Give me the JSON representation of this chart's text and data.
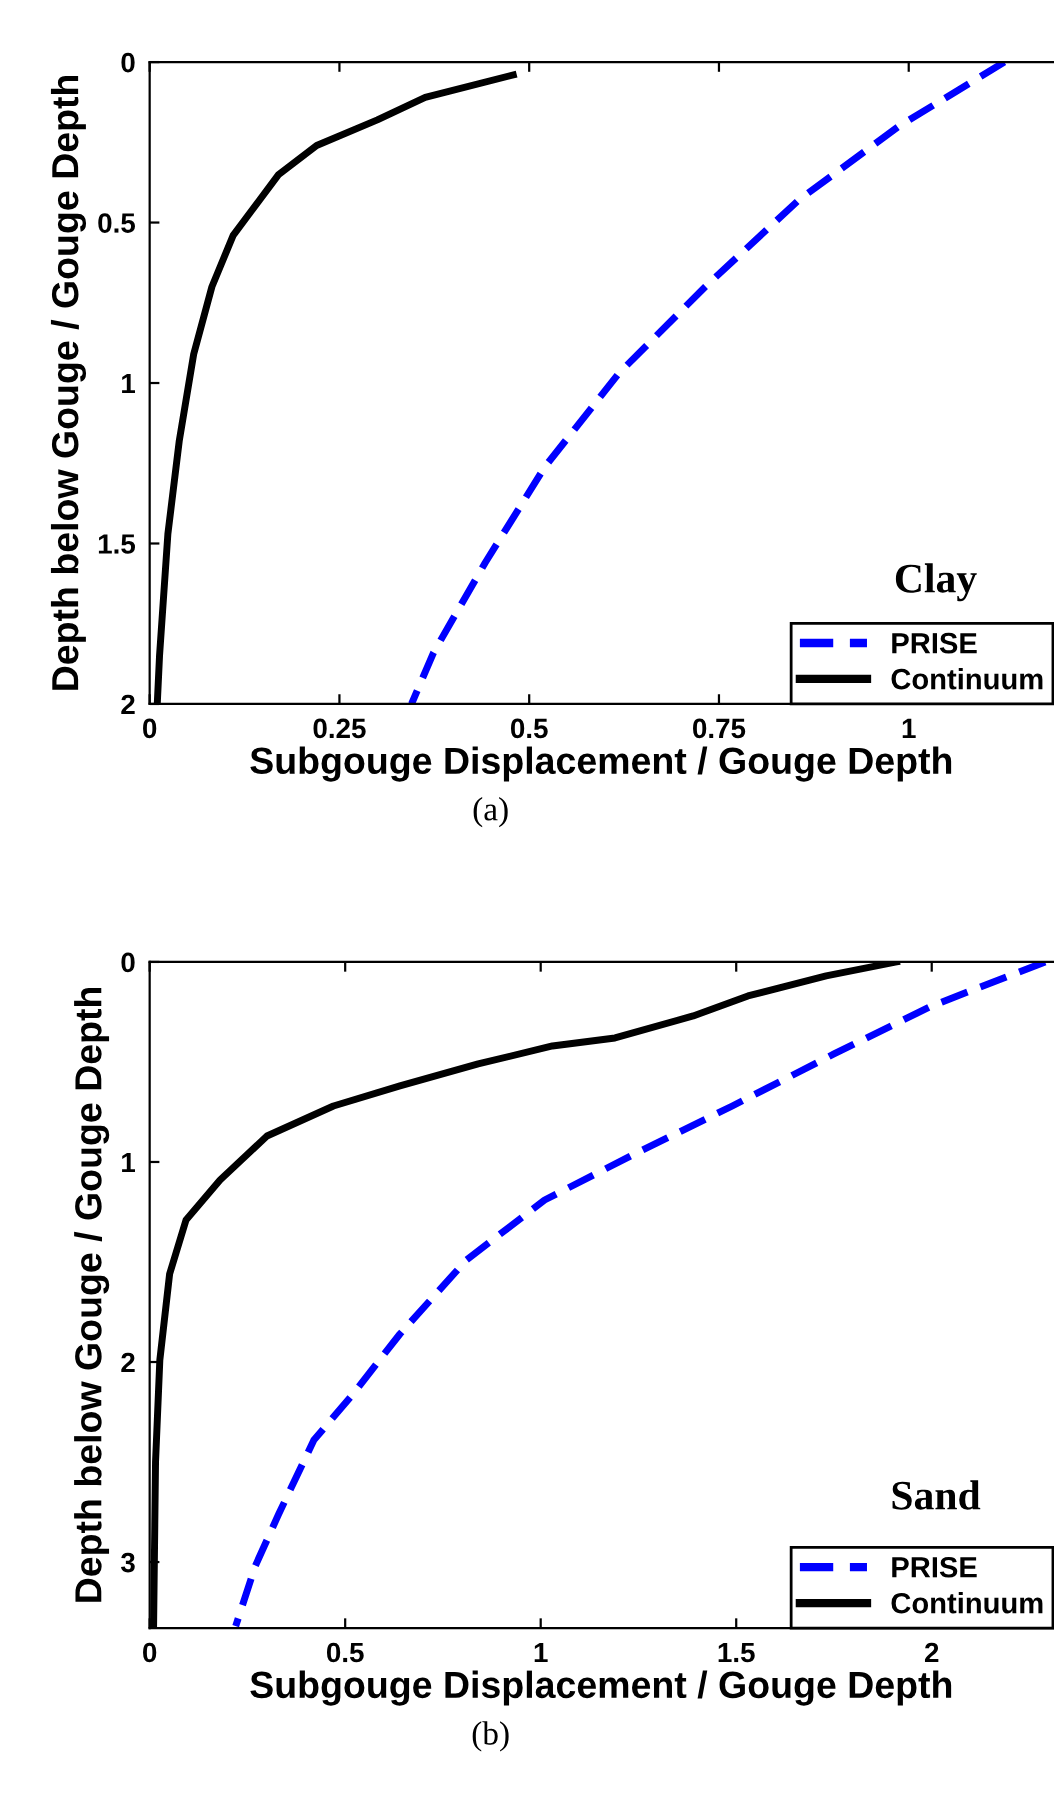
{
  "chart_data": [
    {
      "type": "line",
      "xlabel": "Subgouge Displacement / Gouge Depth",
      "ylabel": "Depth below Gouge / Gouge Depth",
      "xlim": [
        0,
        1.19
      ],
      "xticks": [
        0,
        0.25,
        0.5,
        0.75,
        1
      ],
      "ylim": [
        2,
        0
      ],
      "yticks": [
        0,
        0.5,
        1,
        1.5,
        2
      ],
      "legend": "bottom right",
      "grid": false,
      "annotations": [
        "Clay",
        "(a)"
      ],
      "series": [
        {
          "name": "PRISE",
          "color": "#0000ff",
          "line_style": "dashed",
          "x": [
            1.126,
            0.987,
            0.855,
            0.732,
            0.618,
            0.521,
            0.442,
            0.374,
            0.345
          ],
          "values": [
            0,
            0.2,
            0.43,
            0.7,
            0.97,
            1.26,
            1.56,
            1.84,
            2
          ]
        },
        {
          "name": "Continuum",
          "color": "#000000",
          "line_style": "solid",
          "x": [
            0.479,
            0.363,
            0.3,
            0.22,
            0.17,
            0.11,
            0.082,
            0.058,
            0.039,
            0.024,
            0.013,
            0.01
          ],
          "values": [
            0.04,
            0.11,
            0.18,
            0.26,
            0.35,
            0.54,
            0.7,
            0.91,
            1.18,
            1.47,
            1.85,
            2
          ]
        }
      ]
    },
    {
      "type": "line",
      "xlabel": "Subgouge Displacement / Gouge Depth",
      "ylabel": "Depth below Gouge / Gouge Depth",
      "xlim": [
        0,
        2.31
      ],
      "xticks": [
        0,
        0.5,
        1,
        1.5,
        2
      ],
      "ylim": [
        3.33,
        0
      ],
      "yticks": [
        0,
        1,
        2,
        3
      ],
      "legend": "bottom right",
      "grid": false,
      "annotations": [
        "Sand",
        "(b)"
      ],
      "series": [
        {
          "name": "PRISE",
          "color": "#0000ff",
          "line_style": "dashed",
          "x": [
            2.29,
            2.0,
            1.75,
            1.49,
            1.24,
            1.01,
            0.81,
            0.64,
            0.52,
            0.42,
            0.33,
            0.27,
            0.22
          ],
          "values": [
            0,
            0.22,
            0.46,
            0.72,
            0.96,
            1.19,
            1.49,
            1.86,
            2.16,
            2.39,
            2.76,
            3.02,
            3.32
          ]
        },
        {
          "name": "Continuum",
          "color": "#000000",
          "line_style": "solid",
          "x": [
            1.91,
            1.73,
            1.53,
            1.39,
            1.19,
            1.03,
            0.84,
            0.64,
            0.47,
            0.3,
            0.18,
            0.093,
            0.051,
            0.026,
            0.015,
            0.01
          ],
          "values": [
            0,
            0.07,
            0.17,
            0.27,
            0.38,
            0.42,
            0.51,
            0.62,
            0.72,
            0.87,
            1.09,
            1.29,
            1.56,
            1.99,
            2.5,
            3.33
          ]
        }
      ]
    }
  ]
}
